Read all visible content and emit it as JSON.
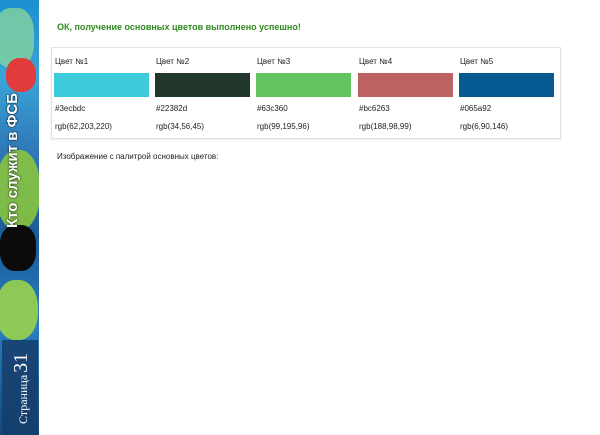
{
  "sidebar": {
    "title": "Кто служит в ФСБ",
    "page_word": "Страница",
    "page_number": "31"
  },
  "status_message": "ОК, получение основных цветов выполнено успешно!",
  "colors": [
    {
      "name": "Цвет №1",
      "hex": "#3ecbdc",
      "rgb": "rgb(62,203,220)",
      "swatch": "#3ecbdc"
    },
    {
      "name": "Цвет №2",
      "hex": "#22382d",
      "rgb": "rgb(34,56,45)",
      "swatch": "#22382d"
    },
    {
      "name": "Цвет №3",
      "hex": "#63c360",
      "rgb": "rgb(99,195,96)",
      "swatch": "#63c360"
    },
    {
      "name": "Цвет №4",
      "hex": "#bc6263",
      "rgb": "rgb(188,98,99)",
      "swatch": "#bc6263"
    },
    {
      "name": "Цвет №5",
      "hex": "#065a92",
      "rgb": "rgb(6,90,146)",
      "swatch": "#065a92"
    }
  ],
  "caption": "Изображение с палитрой основных цветов:"
}
